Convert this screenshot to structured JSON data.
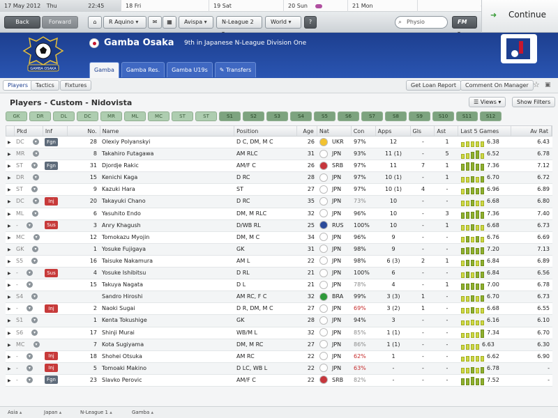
{
  "dates": [
    {
      "date": "17 May 2012",
      "day": "Thu",
      "time": "22:45",
      "current": true
    },
    {
      "date": "18",
      "day": "Fri"
    },
    {
      "date": "19",
      "day": "Sat"
    },
    {
      "date": "20",
      "day": "Sun",
      "match": true
    },
    {
      "date": "21",
      "day": "Mon"
    }
  ],
  "nav": {
    "back": "Back",
    "forward": "Forward",
    "manager": "R Aquino",
    "team_dd": "Avispa",
    "league_dd": "N-League 2",
    "world_dd": "World",
    "help": "?",
    "search_placeholder": "Physio",
    "fm_menu": "FM",
    "continue": "Continue"
  },
  "club": {
    "name": "Gamba Osaka",
    "subtitle": "9th in Japanese N-League Division One",
    "crest_text": "GAMBA OSAKA",
    "colors": {
      "primary": "#1d3f8f",
      "accent": "#2a55b2"
    }
  },
  "tabs": [
    {
      "label": "Gamba",
      "active": true
    },
    {
      "label": "Gamba Res."
    },
    {
      "label": "Gamba U19s"
    },
    {
      "label": "Transfers"
    }
  ],
  "subnav": {
    "players": "Players",
    "tactics": "Tactics",
    "fixtures": "Fixtures",
    "loan_report": "Get Loan Report",
    "comment": "Comment On Manager"
  },
  "page": {
    "title": "Players - Custom - Nidovista",
    "views": "Views",
    "show_filters": "Show Filters"
  },
  "positions": [
    "GK",
    "DR",
    "DL",
    "DC",
    "MR",
    "ML",
    "MC",
    "ST",
    "ST",
    "S1",
    "S2",
    "S3",
    "S4",
    "S5",
    "S6",
    "S7",
    "S8",
    "S9",
    "S10",
    "S11",
    "S12"
  ],
  "table": {
    "headers": [
      "",
      "Pkd",
      "Inf",
      "No.",
      "Name",
      "Position",
      "Age",
      "Nat",
      "Con",
      "Apps",
      "Gls",
      "Ast",
      "Last 5 Games",
      "Av Rat"
    ],
    "rows": [
      {
        "pkd": "DC",
        "inf": "Fgn",
        "no": "28",
        "name": "Olexiy Polyanskyi",
        "pos": "D C, DM, M C",
        "age": "26",
        "nat": "UKR",
        "con": "97%",
        "apps": "12",
        "gls": "-",
        "ast": "1",
        "last": "6.38",
        "avr": "6.43",
        "form": [
          0.5,
          0.6,
          0.6,
          0.6,
          0.6
        ]
      },
      {
        "pkd": "MR",
        "inf": "",
        "no": "8",
        "name": "Takahiro Futagawa",
        "pos": "AM RLC",
        "age": "31",
        "nat": "JPN",
        "con": "93%",
        "apps": "11 (1)",
        "gls": "-",
        "ast": "5",
        "last": "6.52",
        "avr": "6.78",
        "form": [
          0.5,
          0.6,
          0.8,
          0.9,
          0.6
        ]
      },
      {
        "pkd": "ST",
        "inf": "Fgn",
        "no": "31",
        "name": "Djordje Rakic",
        "pos": "AM/F C",
        "age": "26",
        "nat": "SRB",
        "con": "97%",
        "apps": "11",
        "gls": "7",
        "ast": "1",
        "last": "7.36",
        "avr": "7.12",
        "form": [
          0.8,
          0.9,
          0.9,
          0.8,
          0.8
        ]
      },
      {
        "pkd": "DR",
        "inf": "",
        "no": "15",
        "name": "Kenichi Kaga",
        "pos": "D RC",
        "age": "28",
        "nat": "JPN",
        "con": "97%",
        "apps": "10 (1)",
        "gls": "-",
        "ast": "1",
        "last": "6.70",
        "avr": "6.72",
        "form": [
          0.6,
          0.6,
          0.7,
          0.6,
          0.7
        ]
      },
      {
        "pkd": "ST",
        "inf": "",
        "no": "9",
        "name": "Kazuki Hara",
        "pos": "ST",
        "age": "27",
        "nat": "JPN",
        "con": "97%",
        "apps": "10 (1)",
        "gls": "4",
        "ast": "-",
        "last": "6.96",
        "avr": "6.89",
        "form": [
          0.6,
          0.7,
          0.8,
          0.7,
          0.8
        ]
      },
      {
        "pkd": "DC",
        "inf": "Inj",
        "no": "20",
        "name": "Takayuki Chano",
        "pos": "D RC",
        "age": "35",
        "nat": "JPN",
        "con": "73%",
        "apps": "10",
        "gls": "-",
        "ast": "-",
        "last": "6.68",
        "avr": "6.80",
        "form": [
          0.6,
          0.6,
          0.7,
          0.6,
          0.6
        ]
      },
      {
        "pkd": "ML",
        "inf": "",
        "no": "6",
        "name": "Yasuhito Endo",
        "pos": "DM, M RLC",
        "age": "32",
        "nat": "JPN",
        "con": "96%",
        "apps": "10",
        "gls": "-",
        "ast": "3",
        "last": "7.36",
        "avr": "7.40",
        "form": [
          0.7,
          0.8,
          0.8,
          0.9,
          0.8
        ]
      },
      {
        "pkd": "-",
        "inf": "Sus",
        "no": "3",
        "name": "Anry Khagush",
        "pos": "D/WB RL",
        "age": "25",
        "nat": "RUS",
        "con": "100%",
        "apps": "10",
        "gls": "-",
        "ast": "1",
        "last": "6.68",
        "avr": "6.73",
        "form": [
          0.6,
          0.6,
          0.7,
          0.6,
          0.6
        ]
      },
      {
        "pkd": "MC",
        "inf": "",
        "no": "12",
        "name": "Tomokazu Myojin",
        "pos": "DM, M C",
        "age": "34",
        "nat": "JPN",
        "con": "96%",
        "apps": "9",
        "gls": "-",
        "ast": "-",
        "last": "6.76",
        "avr": "6.69",
        "form": [
          0.6,
          0.7,
          0.6,
          0.7,
          0.6
        ]
      },
      {
        "pkd": "GK",
        "inf": "",
        "no": "1",
        "name": "Yosuke Fujigaya",
        "pos": "GK",
        "age": "31",
        "nat": "JPN",
        "con": "98%",
        "apps": "9",
        "gls": "-",
        "ast": "-",
        "last": "7.20",
        "avr": "7.13",
        "form": [
          0.7,
          0.8,
          0.8,
          0.7,
          0.8
        ]
      },
      {
        "pkd": "S5",
        "inf": "",
        "no": "16",
        "name": "Taisuke Nakamura",
        "pos": "AM L",
        "age": "22",
        "nat": "JPN",
        "con": "98%",
        "apps": "6 (3)",
        "gls": "2",
        "ast": "1",
        "last": "6.84",
        "avr": "6.89",
        "form": [
          0.6,
          0.7,
          0.7,
          0.6,
          0.7
        ]
      },
      {
        "pkd": "-",
        "inf": "Sus",
        "no": "4",
        "name": "Yosuke Ishibitsu",
        "pos": "D RL",
        "age": "21",
        "nat": "JPN",
        "con": "100%",
        "apps": "6",
        "gls": "-",
        "ast": "-",
        "last": "6.84",
        "avr": "6.56",
        "form": [
          0.6,
          0.7,
          0.6,
          0.7,
          0.7
        ]
      },
      {
        "pkd": "-",
        "inf": "",
        "no": "15",
        "name": "Takuya Nagata",
        "pos": "D L",
        "age": "21",
        "nat": "JPN",
        "con": "78%",
        "apps": "4",
        "gls": "-",
        "ast": "1",
        "last": "7.00",
        "avr": "6.78",
        "form": [
          0.7,
          0.7,
          0.8,
          0.7,
          0.7
        ]
      },
      {
        "pkd": "S4",
        "inf": "",
        "no": "",
        "name": "Sandro Hiroshi",
        "pos": "AM RC, F C",
        "age": "32",
        "nat": "BRA",
        "con": "99%",
        "apps": "3 (3)",
        "gls": "1",
        "ast": "-",
        "last": "6.70",
        "avr": "6.73",
        "form": [
          0.6,
          0.6,
          0.7,
          0.6,
          0.7
        ]
      },
      {
        "pkd": "-",
        "inf": "Inj",
        "no": "2",
        "name": "Naoki Sugai",
        "pos": "D R, DM, M C",
        "age": "27",
        "nat": "JPN",
        "con": "69%",
        "apps": "3 (2)",
        "gls": "1",
        "ast": "-",
        "last": "6.68",
        "avr": "6.55",
        "form": [
          0.6,
          0.6,
          0.7,
          0.6,
          0.6
        ]
      },
      {
        "pkd": "S1",
        "inf": "",
        "no": "1",
        "name": "Kenta Tokushige",
        "pos": "GK",
        "age": "28",
        "nat": "JPN",
        "con": "94%",
        "apps": "3",
        "gls": "-",
        "ast": "-",
        "last": "6.16",
        "avr": "6.10",
        "form": [
          0.5,
          0.5,
          0.6,
          0.5,
          0.5
        ]
      },
      {
        "pkd": "S6",
        "inf": "",
        "no": "17",
        "name": "Shinji Murai",
        "pos": "WB/M L",
        "age": "32",
        "nat": "JPN",
        "con": "85%",
        "apps": "1 (1)",
        "gls": "-",
        "ast": "-",
        "last": "7.34",
        "avr": "6.70",
        "form": [
          0.5,
          0.5,
          0.6,
          0.6,
          0.9
        ]
      },
      {
        "pkd": "MC",
        "inf": "",
        "no": "7",
        "name": "Kota Sugiyama",
        "pos": "DM, M RC",
        "age": "27",
        "nat": "JPN",
        "con": "86%",
        "apps": "1 (1)",
        "gls": "-",
        "ast": "-",
        "last": "6.63",
        "avr": "6.30",
        "form": [
          0,
          0.5,
          0.6,
          0.6,
          0.6
        ]
      },
      {
        "pkd": "-",
        "inf": "Inj",
        "no": "18",
        "name": "Shohei Otsuka",
        "pos": "AM RC",
        "age": "22",
        "nat": "JPN",
        "con": "62%",
        "apps": "1",
        "gls": "-",
        "ast": "-",
        "last": "6.62",
        "avr": "6.90",
        "form": [
          0.5,
          0.6,
          0.6,
          0.6,
          0.6
        ]
      },
      {
        "pkd": "-",
        "inf": "Inj",
        "no": "5",
        "name": "Tomoaki Makino",
        "pos": "D LC, WB L",
        "age": "22",
        "nat": "JPN",
        "con": "63%",
        "apps": "-",
        "gls": "-",
        "ast": "-",
        "last": "6.78",
        "avr": "-",
        "form": [
          0.6,
          0.6,
          0.7,
          0.6,
          0.7
        ]
      },
      {
        "pkd": "-",
        "inf": "Fgn",
        "no": "23",
        "name": "Slavko Perovic",
        "pos": "AM/F C",
        "age": "22",
        "nat": "SRB",
        "con": "82%",
        "apps": "-",
        "gls": "-",
        "ast": "-",
        "last": "7.52",
        "avr": "-",
        "form": [
          0.8,
          0.8,
          0.9,
          0.8,
          0.8
        ]
      }
    ]
  },
  "footer": [
    "Asia",
    "Japan",
    "N-League 1",
    "Gamba"
  ]
}
